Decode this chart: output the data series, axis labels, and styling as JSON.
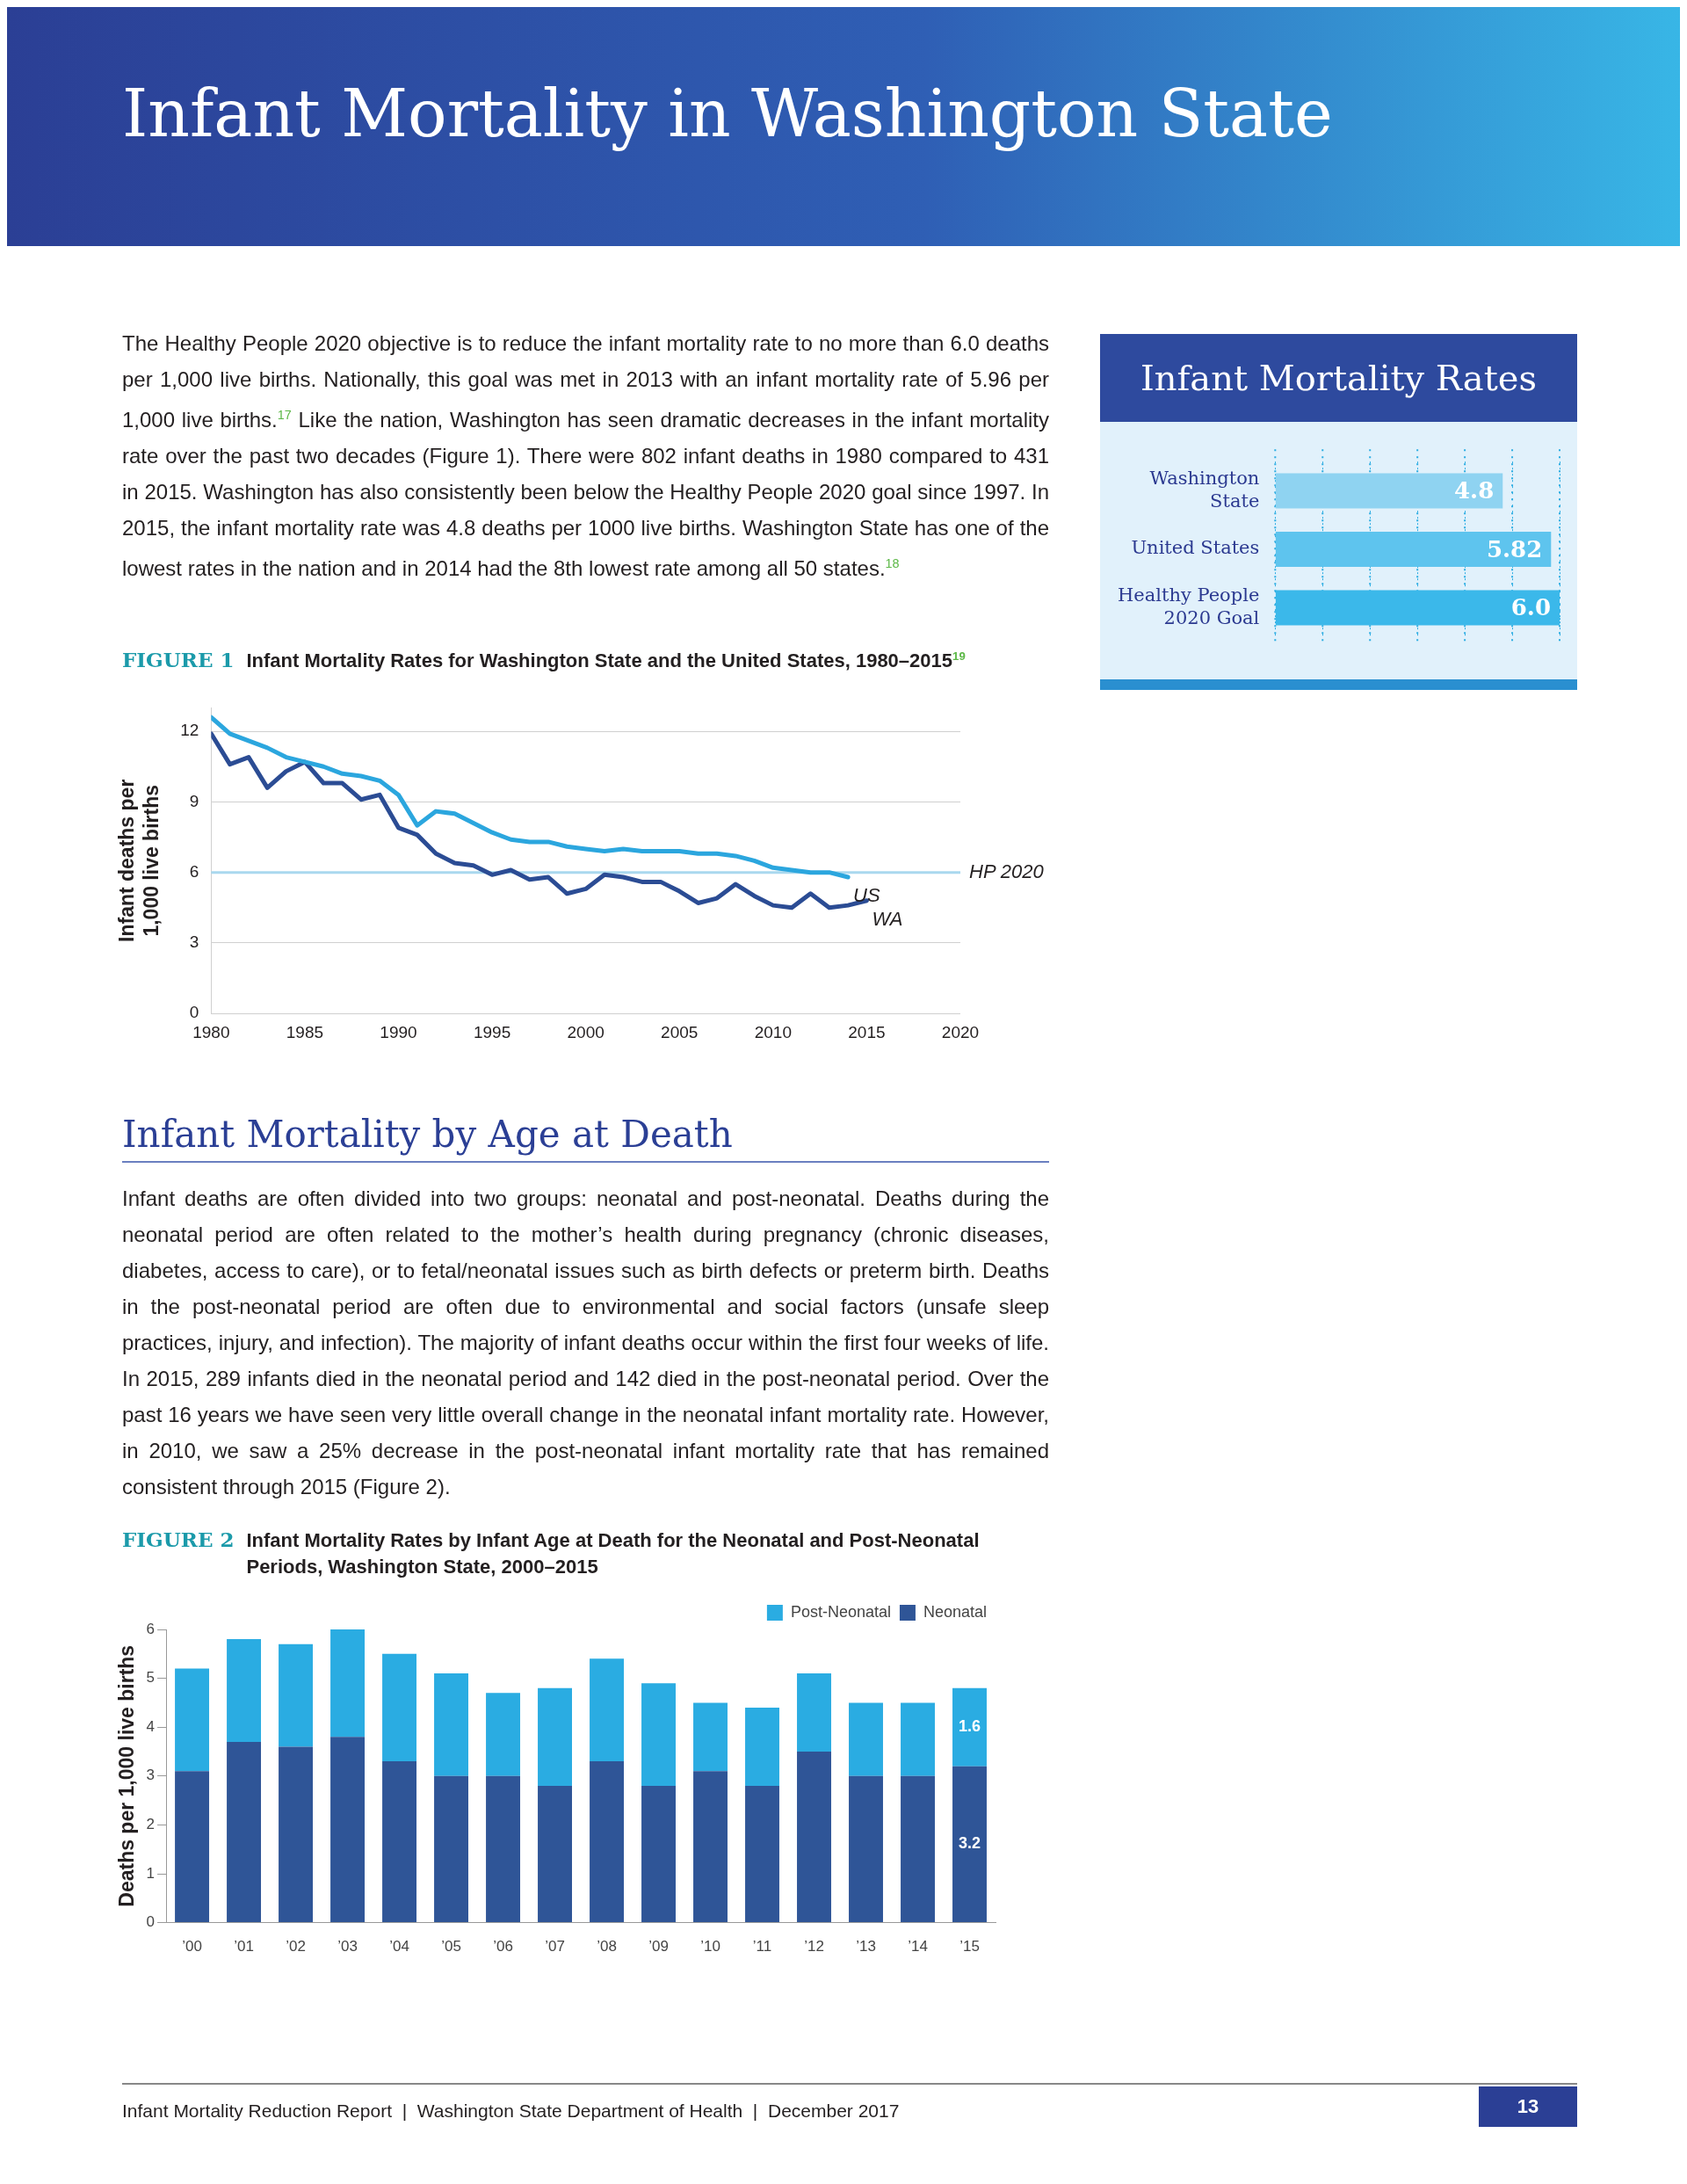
{
  "chart_data": [
    {
      "type": "line",
      "subtitle": "FIGURE 1",
      "title": "Infant Mortality Rates for Washington State and the United States, 1980–2015$^{19}$",
      "ylabel": "Infant deaths per 1,000 live births",
      "annotations": [
        "Infant Mortality in Washington State",
        "The Healthy People 2020 objective is to reduce the infant mortality rate to no more than 6.0 deaths per 1,000 live births. Nationally, this goal was met in 2013 with an infant mortality rate of 5.96 per 1,000 live births.$^{17}$ Like the nation, Washington has seen dramatic decreases in the infant mortality rate over the past two decades (Figure 1). There were 802 infant deaths in 1980 compared to 431 in 2015. Washington has also consistently been below the Healthy People 2020 goal since 1997. In 2015, the infant mortality rate was 4.8 deaths per 1000 live births. Washington State has one of the lowest rates in the nation and in 2014 had the 8th lowest rate among all 50 states.$^{18}$"
      ],
      "x": [
        1980,
        1981,
        1982,
        1983,
        1984,
        1985,
        1986,
        1987,
        1988,
        1989,
        1990,
        1991,
        1992,
        1993,
        1994,
        1995,
        1996,
        1997,
        1998,
        1999,
        2000,
        2001,
        2002,
        2003,
        2004,
        2005,
        2006,
        2007,
        2008,
        2009,
        2010,
        2011,
        2012,
        2013,
        2014,
        2015
      ],
      "series": [
        {
          "name": "US",
          "color": "#2ba6de",
          "values": [
            12.6,
            11.9,
            11.6,
            11.3,
            10.9,
            10.7,
            10.5,
            10.2,
            10.1,
            9.9,
            9.3,
            8.0,
            8.6,
            8.5,
            8.1,
            7.7,
            7.4,
            7.3,
            7.3,
            7.1,
            7.0,
            6.9,
            7.0,
            6.9,
            6.9,
            6.9,
            6.8,
            6.8,
            6.7,
            6.5,
            6.2,
            6.1,
            6.0,
            6.0,
            5.8,
            null
          ]
        },
        {
          "name": "WA",
          "color": "#2b4c94",
          "values": [
            11.9,
            10.6,
            10.9,
            9.6,
            10.3,
            10.7,
            9.8,
            9.8,
            9.1,
            9.3,
            7.9,
            7.6,
            6.8,
            6.4,
            6.3,
            5.9,
            6.1,
            5.7,
            5.8,
            5.1,
            5.3,
            5.9,
            5.8,
            5.6,
            5.6,
            5.2,
            4.7,
            4.9,
            5.5,
            5.0,
            4.6,
            4.5,
            5.1,
            4.5,
            4.6,
            4.8
          ]
        }
      ],
      "xlim": [
        1980,
        2020
      ],
      "xticks": [
        1980,
        1985,
        1990,
        1995,
        2000,
        2005,
        2010,
        2015,
        2020
      ],
      "ylim": [
        0,
        13
      ],
      "yticks": [
        0,
        3,
        6,
        9,
        12
      ],
      "grid": "y",
      "marker": "none",
      "line_style": "solid",
      "ref_lines": [
        {
          "axis": "y",
          "value": 6,
          "label": "HP 2020",
          "color": "#a9d8ee"
        }
      ]
    },
    {
      "type": "bar",
      "title": "Infant Mortality Rates",
      "orientation": "horizontal",
      "categories": [
        "Washington State",
        "United States",
        "Healthy People 2020 Goal"
      ],
      "values": [
        4.8,
        5.82,
        6.0
      ],
      "value_labels": [
        "4.8",
        "5.82",
        "6.0"
      ],
      "colors": [
        "#8fd3f1",
        "#5ec4ee",
        "#3bb8ea"
      ],
      "xlim": [
        0,
        6
      ],
      "xticks": [
        {
          "value": 0,
          "label": null
        },
        {
          "value": 1,
          "label": null
        },
        {
          "value": 2,
          "label": null
        },
        {
          "value": 3,
          "label": null
        },
        {
          "value": 4,
          "label": null
        },
        {
          "value": 5,
          "label": null
        },
        {
          "value": 6,
          "label": null
        }
      ],
      "grid": "x",
      "tick_labels": "y"
    },
    {
      "type": "bar",
      "subtitle": "FIGURE 2",
      "title": "Infant Mortality Rates by Infant Age at Death for the Neonatal and Post-Neonatal Periods, Washington State, 2000–2015",
      "ylabel": "Deaths per 1,000 live births",
      "annotations": [
        "Infant Mortality by Age at Death",
        "Infant deaths are often divided into two groups: neonatal and post-neonatal. Deaths during the neonatal period are often related to the mother’s health during pregnancy (chronic diseases, diabetes, access to care), or to fetal/neonatal issues such as birth defects or preterm birth. Deaths in the post-neonatal period are often due to environmental and social factors (unsafe sleep practices, injury, and infection). The majority of infant deaths occur within the first four weeks of life. In 2015, 289 infants died in the neonatal period and 142 died in the post-neonatal period. Over the past 16 years we have seen very little overall change in the neonatal infant mortality rate. However, in 2010, we saw a 25% decrease in the post-neonatal infant mortality rate that has remained consistent through 2015 (Figure 2).",
        "Infant Mortality Reduction Report  |  Washington State Department of Health  |  December 2017",
        "13"
      ],
      "categories": [
        "’00",
        "’01",
        "’02",
        "’03",
        "’04",
        "’05",
        "’06",
        "’07",
        "’08",
        "’09",
        "’10",
        "’11",
        "’12",
        "’13",
        "’14",
        "’15"
      ],
      "stacked": true,
      "series": [
        {
          "name": "Neonatal",
          "color": "#2f5597",
          "values": [
            3.1,
            3.7,
            3.6,
            3.8,
            3.3,
            3.0,
            3.0,
            2.8,
            3.3,
            2.8,
            3.1,
            2.8,
            3.5,
            3.0,
            3.0,
            3.2
          ],
          "value_labels": [
            null,
            null,
            null,
            null,
            null,
            null,
            null,
            null,
            null,
            null,
            null,
            null,
            null,
            null,
            null,
            "3.2"
          ]
        },
        {
          "name": "Post-Neonatal",
          "color": "#2aace2",
          "values": [
            2.1,
            2.1,
            2.1,
            2.2,
            2.2,
            2.1,
            1.7,
            2.0,
            2.1,
            2.1,
            1.4,
            1.6,
            1.6,
            1.5,
            1.5,
            1.6
          ],
          "value_labels": [
            null,
            null,
            null,
            null,
            null,
            null,
            null,
            null,
            null,
            null,
            null,
            null,
            null,
            null,
            null,
            "1.6"
          ]
        }
      ],
      "ylim": [
        0,
        6
      ],
      "yticks": [
        0,
        1,
        2,
        3,
        4,
        5,
        6
      ],
      "grid": false,
      "legend": "top right"
    }
  ]
}
